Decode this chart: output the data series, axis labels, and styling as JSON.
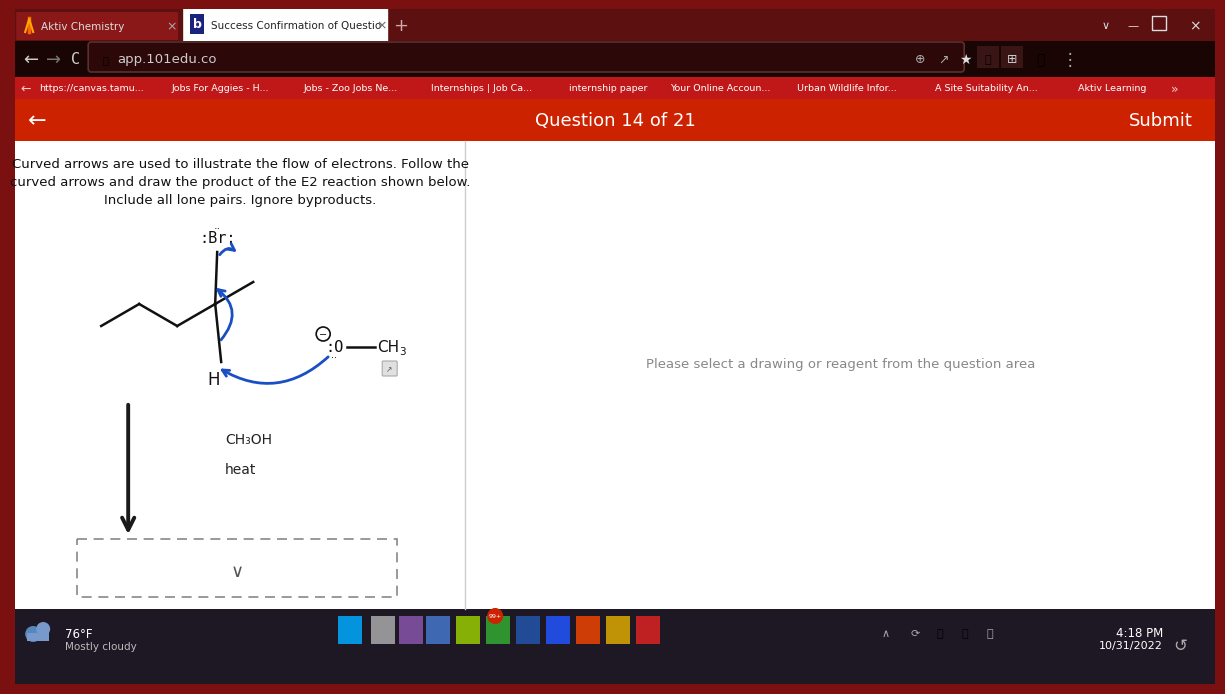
{
  "browser_bg": "#7a1010",
  "tab_bar_bg": "#5c1010",
  "active_tab_color": "#ffffff",
  "inactive_tab_bg": "#8a1515",
  "nav_bar_bg": "#1a0505",
  "nav_bar_url_bg": "#2a0808",
  "bookmarks_bar_bg": "#b01515",
  "question_bar_bg": "#cc2200",
  "content_bg": "#ffffff",
  "divider_color": "#cccccc",
  "taskbar_bg": "#1a1520",
  "title_aktiv": "Aktiv Chemistry",
  "title_success": "Success Confirmation of Questio",
  "url": "app.101edu.co",
  "question_label": "Question 14 of 21",
  "submit_text": "Submit",
  "instruction_line1": "Curved arrows are used to illustrate the flow of electrons. Follow the",
  "instruction_line2": "curved arrows and draw the product of the E2 reaction shown below.",
  "instruction_line3": "Include all lone pairs. Ignore byproducts.",
  "reagent1": "CH₃OH",
  "reagent2": "heat",
  "right_panel_text": "Please select a drawing or reagent from the question area",
  "bookmarks": [
    "https://canvas.tamu...",
    "Jobs For Aggies - H...",
    "Jobs - Zoo Jobs Ne...",
    "Internships | Job Ca...",
    "internship paper",
    "Your Online Accoun...",
    "Urban Wildlife Infor...",
    "A Site Suitability An...",
    "Aktiv Learning"
  ],
  "time_line1": "4:18 PM",
  "time_line2": "10/31/2022",
  "weather_line1": "76°F",
  "weather_line2": "Mostly cloudy",
  "arrow_color": "#1a4fc4",
  "struct_color": "#000000",
  "react_arrow_color": "#333333"
}
